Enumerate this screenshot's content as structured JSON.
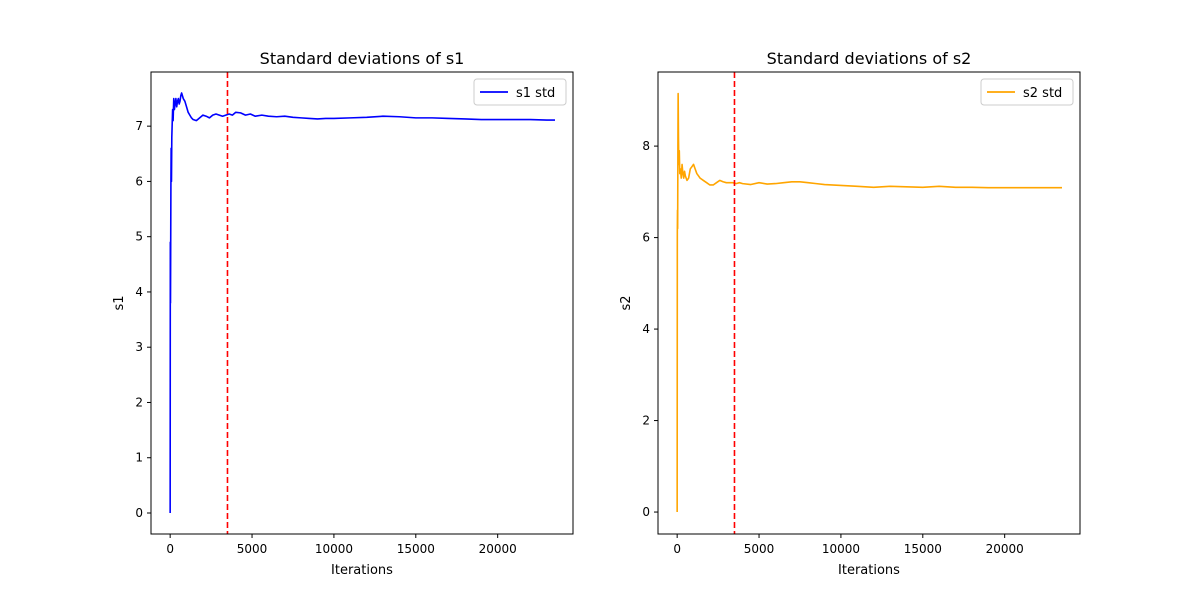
{
  "chart_data": [
    {
      "type": "line",
      "title": "Standard deviations of s1",
      "xlabel": "Iterations",
      "ylabel": "s1",
      "xlim": [
        -1170,
        24600
      ],
      "ylim": [
        -0.38,
        7.98
      ],
      "xticks": [
        0,
        5000,
        10000,
        15000,
        20000
      ],
      "yticks": [
        0,
        1,
        2,
        3,
        4,
        5,
        6,
        7
      ],
      "xtick_labels": [
        "0",
        "5000",
        "10000",
        "15000",
        "20000"
      ],
      "ytick_labels": [
        "0",
        "1",
        "2",
        "3",
        "4",
        "5",
        "6",
        "7"
      ],
      "grid": false,
      "legend_position": "top-right",
      "vline": {
        "x": 3500,
        "color": "#ff0000",
        "style": "dashed"
      },
      "series": [
        {
          "name": "s1 std",
          "color": "#0000ff",
          "x": [
            0,
            10,
            20,
            30,
            45,
            60,
            80,
            100,
            120,
            150,
            180,
            220,
            260,
            300,
            350,
            400,
            450,
            500,
            550,
            600,
            650,
            700,
            750,
            800,
            900,
            1000,
            1100,
            1200,
            1300,
            1400,
            1600,
            1800,
            2000,
            2200,
            2400,
            2600,
            2800,
            3000,
            3200,
            3400,
            3600,
            3800,
            4000,
            4300,
            4600,
            4900,
            5200,
            5600,
            6000,
            6500,
            7000,
            7500,
            8000,
            8500,
            9000,
            9500,
            10000,
            11000,
            12000,
            13000,
            14000,
            15000,
            16000,
            17000,
            18000,
            19000,
            20000,
            21000,
            22000,
            23000,
            23500
          ],
          "values": [
            0,
            4.9,
            3.8,
            4.6,
            5.9,
            6.6,
            6.0,
            6.8,
            7.0,
            7.3,
            7.1,
            7.5,
            7.3,
            7.4,
            7.5,
            7.35,
            7.45,
            7.5,
            7.4,
            7.45,
            7.55,
            7.6,
            7.55,
            7.5,
            7.45,
            7.35,
            7.25,
            7.2,
            7.15,
            7.12,
            7.1,
            7.15,
            7.2,
            7.18,
            7.15,
            7.2,
            7.22,
            7.2,
            7.18,
            7.2,
            7.22,
            7.2,
            7.25,
            7.24,
            7.2,
            7.22,
            7.18,
            7.2,
            7.18,
            7.17,
            7.18,
            7.16,
            7.15,
            7.14,
            7.13,
            7.14,
            7.14,
            7.15,
            7.16,
            7.18,
            7.17,
            7.15,
            7.15,
            7.14,
            7.13,
            7.12,
            7.12,
            7.12,
            7.12,
            7.11,
            7.11
          ]
        }
      ]
    },
    {
      "type": "line",
      "title": "Standard deviations of s2",
      "xlabel": "Iterations",
      "ylabel": "s2",
      "xlim": [
        -1170,
        24600
      ],
      "ylim": [
        -0.48,
        9.62
      ],
      "xticks": [
        0,
        5000,
        10000,
        15000,
        20000
      ],
      "yticks": [
        0,
        2,
        4,
        6,
        8
      ],
      "xtick_labels": [
        "0",
        "5000",
        "10000",
        "15000",
        "20000"
      ],
      "ytick_labels": [
        "0",
        "2",
        "4",
        "6",
        "8"
      ],
      "grid": false,
      "legend_position": "top-right",
      "vline": {
        "x": 3500,
        "color": "#ff0000",
        "style": "dashed"
      },
      "series": [
        {
          "name": "s2 std",
          "color": "#ffa500",
          "x": [
            0,
            10,
            20,
            30,
            45,
            60,
            80,
            100,
            130,
            160,
            200,
            250,
            300,
            350,
            400,
            450,
            500,
            550,
            600,
            700,
            800,
            900,
            1000,
            1100,
            1200,
            1300,
            1400,
            1600,
            1800,
            2000,
            2200,
            2400,
            2600,
            2800,
            3000,
            3200,
            3400,
            3600,
            3800,
            4000,
            4500,
            5000,
            5500,
            6000,
            6500,
            7000,
            7500,
            8000,
            8500,
            9000,
            10000,
            11000,
            12000,
            13000,
            14000,
            15000,
            16000,
            17000,
            18000,
            19000,
            20000,
            21000,
            22000,
            23000,
            23500
          ],
          "values": [
            0,
            6.1,
            6.6,
            6.2,
            8.0,
            9.15,
            8.2,
            7.6,
            7.9,
            7.4,
            7.5,
            7.3,
            7.6,
            7.4,
            7.3,
            7.45,
            7.35,
            7.3,
            7.25,
            7.3,
            7.5,
            7.55,
            7.6,
            7.5,
            7.4,
            7.35,
            7.3,
            7.25,
            7.2,
            7.15,
            7.15,
            7.2,
            7.25,
            7.22,
            7.2,
            7.2,
            7.2,
            7.18,
            7.2,
            7.18,
            7.16,
            7.2,
            7.17,
            7.18,
            7.2,
            7.22,
            7.22,
            7.2,
            7.18,
            7.16,
            7.14,
            7.12,
            7.1,
            7.12,
            7.11,
            7.1,
            7.12,
            7.1,
            7.1,
            7.09,
            7.09,
            7.09,
            7.09,
            7.09,
            7.09
          ]
        }
      ]
    }
  ]
}
